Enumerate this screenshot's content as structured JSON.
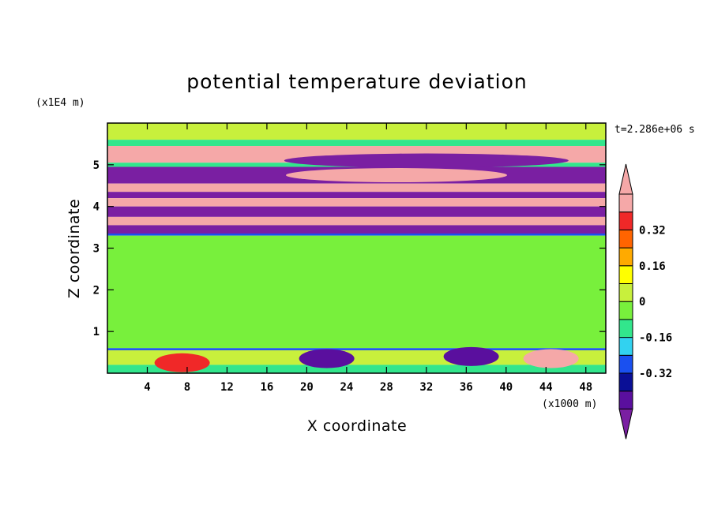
{
  "chart_data": {
    "type": "heatmap",
    "title": "potential temperature deviation",
    "xlabel": "X coordinate",
    "ylabel": "Z coordinate",
    "x_unit": "(x1000 m)",
    "y_unit": "(x1E4 m)",
    "time_label": "t=2.286e+06 s",
    "xlim": [
      0,
      50
    ],
    "ylim": [
      0,
      6
    ],
    "x_ticks": [
      "4",
      "8",
      "12",
      "16",
      "20",
      "24",
      "28",
      "32",
      "36",
      "40",
      "44",
      "48"
    ],
    "x_tick_values": [
      4,
      8,
      12,
      16,
      20,
      24,
      28,
      32,
      36,
      40,
      44,
      48
    ],
    "y_ticks": [
      "1",
      "2",
      "3",
      "4",
      "5"
    ],
    "y_tick_values": [
      1,
      2,
      3,
      4,
      5
    ],
    "color_levels": [
      -0.48,
      -0.4,
      -0.32,
      -0.24,
      -0.16,
      -0.08,
      0,
      0.08,
      0.16,
      0.24,
      0.32,
      0.4,
      0.48
    ],
    "colorbar_labels": [
      "0.32",
      "0.16",
      "0",
      "-0.16",
      "-0.32"
    ],
    "colorbar_label_values": [
      0.32,
      0.16,
      0,
      -0.16,
      -0.32
    ],
    "colormap": [
      "#7A1FA2",
      "#5A0F9E",
      "#0A0F96",
      "#1A50F0",
      "#32D2F0",
      "#32E68C",
      "#78F03C",
      "#C8F03C",
      "#FFFF00",
      "#FFAA00",
      "#FF6400",
      "#F02828",
      "#F5A8A8"
    ],
    "bands": [
      {
        "z": [
          5.6,
          6.0
        ],
        "value": 0.05
      },
      {
        "z": [
          5.45,
          5.6
        ],
        "value": -0.08
      },
      {
        "z": [
          5.05,
          5.45
        ],
        "value": 0.48
      },
      {
        "z": [
          4.95,
          5.05
        ],
        "value": -0.12
      },
      {
        "z": [
          4.55,
          4.95
        ],
        "value": -0.48
      },
      {
        "z": [
          4.35,
          4.55
        ],
        "value": 0.48
      },
      {
        "z": [
          4.2,
          4.35
        ],
        "value": -0.48
      },
      {
        "z": [
          4.0,
          4.2
        ],
        "value": 0.48
      },
      {
        "z": [
          3.75,
          4.0
        ],
        "value": -0.48
      },
      {
        "z": [
          3.55,
          3.75
        ],
        "value": 0.48
      },
      {
        "z": [
          3.35,
          3.55
        ],
        "value": -0.48
      },
      {
        "z": [
          3.3,
          3.35
        ],
        "value": -0.3
      },
      {
        "z": [
          0.6,
          3.3
        ],
        "value": -0.02
      },
      {
        "z": [
          0.55,
          0.6
        ],
        "value": -0.3
      },
      {
        "z": [
          0.2,
          0.55
        ],
        "value": 0.05
      },
      {
        "z": [
          0.0,
          0.2
        ],
        "value": -0.1
      }
    ],
    "features": [
      {
        "x": 7.5,
        "z": 0.25,
        "value": 0.4
      },
      {
        "x": 44.5,
        "z": 0.35,
        "value": 0.48
      },
      {
        "x": 22.0,
        "z": 0.35,
        "value": -0.4
      },
      {
        "x": 36.5,
        "z": 0.4,
        "value": -0.4
      },
      {
        "x": 32.0,
        "z": 5.1,
        "value": -0.48
      },
      {
        "x": 29.0,
        "z": 4.75,
        "value": 0.48
      }
    ]
  }
}
